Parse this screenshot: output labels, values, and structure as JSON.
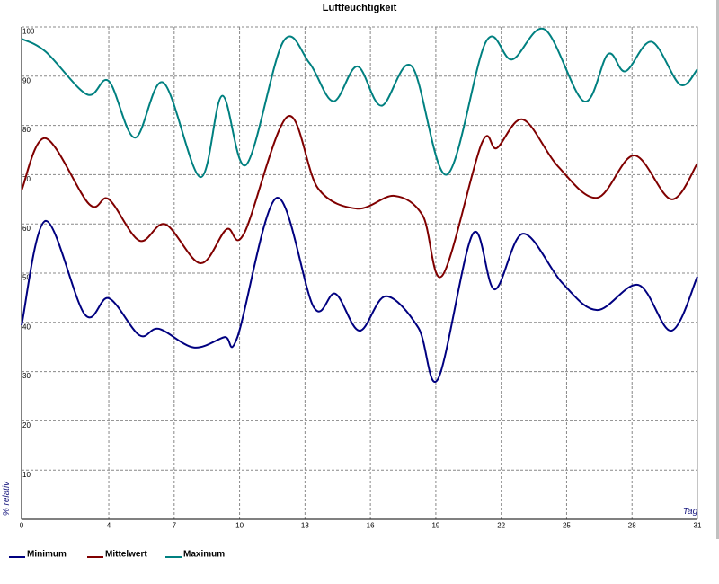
{
  "chart_data": {
    "type": "line",
    "title": "Luftfeuchtigkeit",
    "x_label": "Tag",
    "y_label": "% relativ",
    "xlim": [
      0,
      31
    ],
    "ylim": [
      0,
      100
    ],
    "xticks": [
      0,
      4,
      7,
      10,
      13,
      16,
      19,
      22,
      25,
      28,
      31
    ],
    "yticks": [
      10,
      20,
      30,
      40,
      50,
      60,
      70,
      80,
      90,
      100
    ],
    "grid": true,
    "legend": "bottom",
    "series": [
      {
        "name": "Minimum",
        "color": "#000080",
        "x": [
          0,
          1.1,
          2.9,
          4,
          5.4,
          6.3,
          7.9,
          9.3,
          9.9,
          11.7,
          13.4,
          14.4,
          15.5,
          16.7,
          18.2,
          19.1,
          20.7,
          21.7,
          23,
          24.8,
          26.4,
          28.3,
          29.8,
          31
        ],
        "values": [
          39.4,
          60.6,
          41.6,
          44.9,
          37.4,
          38.7,
          34.9,
          37,
          37,
          65.3,
          43.1,
          45.8,
          38.3,
          45.3,
          38.9,
          28.5,
          58,
          46.7,
          58,
          48,
          42.5,
          47.6,
          38.3,
          49.3
        ]
      },
      {
        "name": "Mittelwert",
        "color": "#800000",
        "x": [
          0,
          1.1,
          3.1,
          4,
          5.4,
          6.6,
          8.2,
          9.4,
          10.2,
          12.2,
          13.6,
          15.4,
          17.1,
          18.4,
          19.3,
          21.1,
          21.8,
          23,
          24.6,
          26.4,
          28.1,
          29.8,
          31
        ],
        "values": [
          66.8,
          77.4,
          64,
          65,
          56.6,
          59.9,
          52,
          58.9,
          58,
          81.8,
          67.2,
          63.1,
          65.7,
          61.7,
          49.5,
          76.3,
          75.4,
          81.2,
          71.7,
          65.3,
          73.9,
          65,
          72.3
        ]
      },
      {
        "name": "Maximum",
        "color": "#008080",
        "x": [
          0,
          1.1,
          3,
          4,
          5.2,
          6.5,
          8.2,
          9.2,
          10.3,
          12,
          13.2,
          14.3,
          15.4,
          16.5,
          17.9,
          19.5,
          21.3,
          22.5,
          24,
          25.8,
          26.9,
          27.7,
          28.9,
          30.2,
          31
        ],
        "values": [
          97.6,
          95,
          86.3,
          89,
          77.5,
          88.7,
          69.5,
          86,
          72,
          97,
          92.7,
          84.9,
          92,
          84,
          92,
          70,
          97,
          93.4,
          99.5,
          84.9,
          94.5,
          91,
          97,
          88.3,
          91.4
        ]
      }
    ]
  }
}
